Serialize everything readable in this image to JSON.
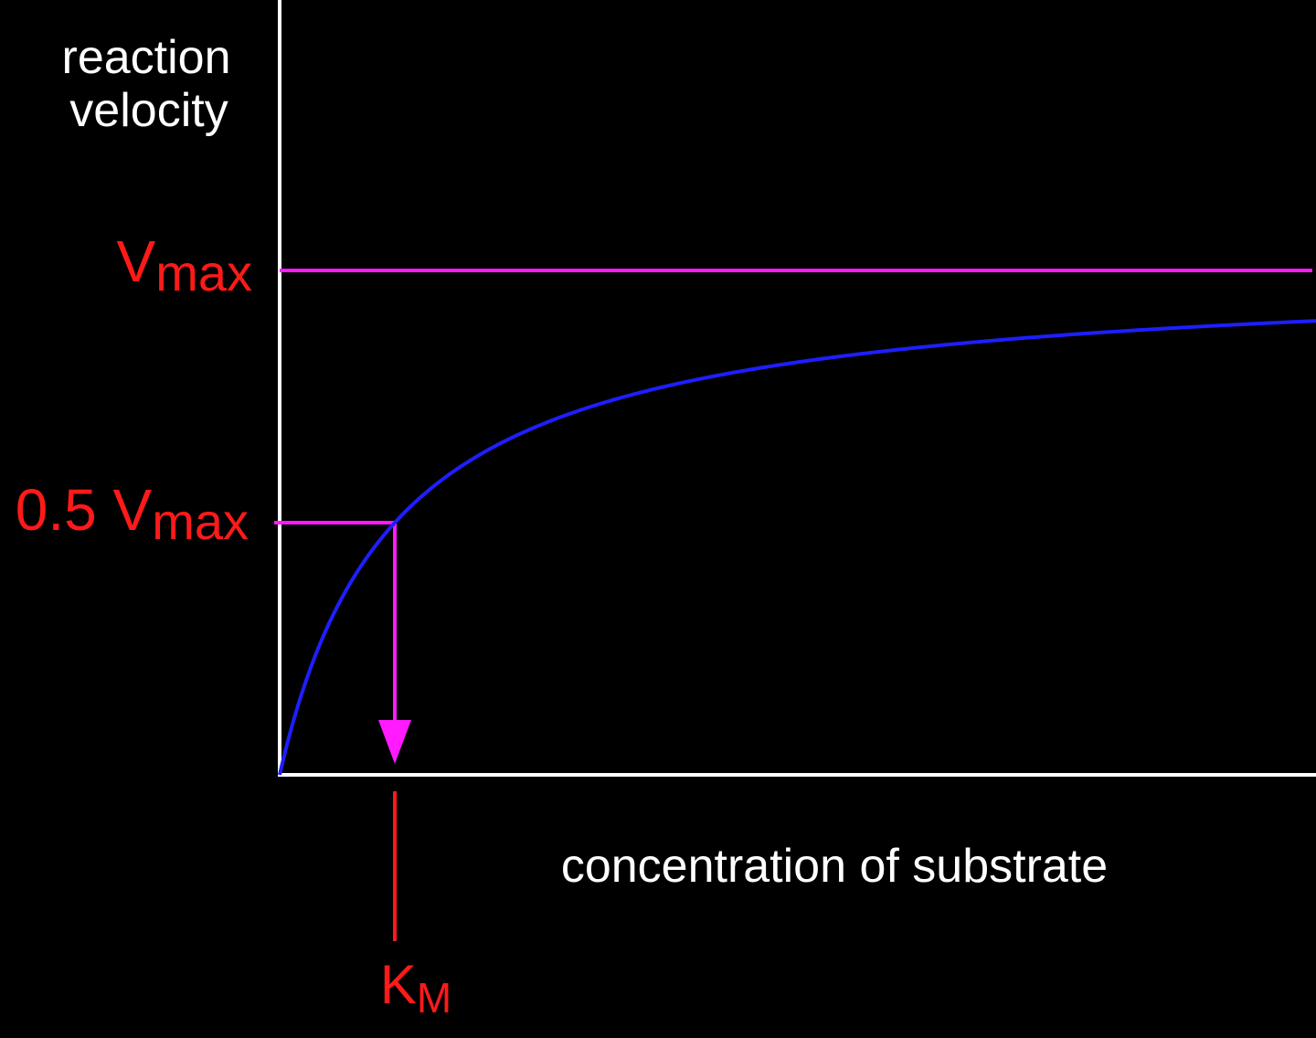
{
  "colors": {
    "background": "#000000",
    "axis": "#ffffff",
    "curve": "#1e1eff",
    "guide": "#ff1aff",
    "label_white": "#ffffff",
    "label_red": "#ff1a1a"
  },
  "labels": {
    "y_axis_line1": "reaction",
    "y_axis_line2": "velocity",
    "x_axis": "concentration of substrate",
    "vmax_main": "V",
    "vmax_sub": "max",
    "half_vmax_prefix": "0.5 V",
    "half_vmax_sub": "max",
    "km_main": "K",
    "km_sub": "M"
  },
  "chart_data": {
    "type": "line",
    "title": "",
    "xlabel": "concentration of substrate",
    "ylabel": "reaction velocity",
    "model": "Michaelis-Menten",
    "Vmax": 1,
    "Km": 1,
    "xlim": [
      0,
      9
    ],
    "ylim": [
      0,
      1
    ],
    "grid": false,
    "series": [
      {
        "values_x": [
          0,
          0.05,
          0.1,
          0.25,
          0.5,
          0.75,
          1,
          1.5,
          2,
          3,
          4,
          5,
          6,
          7,
          8,
          9
        ],
        "values_y": [
          0,
          0.048,
          0.091,
          0.2,
          0.333,
          0.429,
          0.5,
          0.6,
          0.667,
          0.75,
          0.8,
          0.833,
          0.857,
          0.875,
          0.889,
          0.9
        ]
      }
    ],
    "reference_lines": [
      {
        "kind": "horizontal",
        "y": 1,
        "label": "Vmax"
      },
      {
        "kind": "horizontal",
        "y": 0.5,
        "x_end": 1,
        "label": "0.5 Vmax"
      },
      {
        "kind": "vertical-arrow",
        "x": 1,
        "from_y": 0.5,
        "to_y": 0,
        "label": "KM"
      }
    ]
  }
}
